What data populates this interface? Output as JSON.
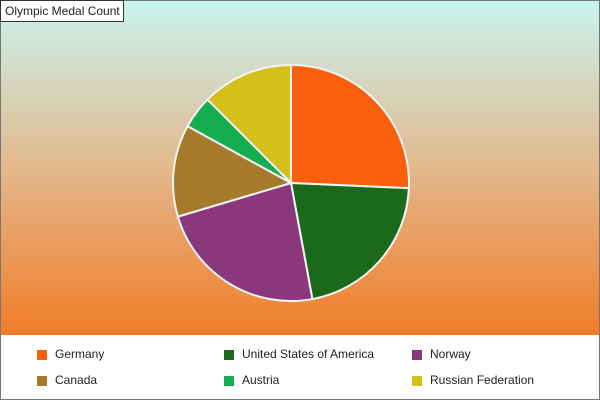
{
  "chart_data": {
    "type": "pie",
    "title": "Olympic Medal Count",
    "categories": [
      "Germany",
      "United States of America",
      "Norway",
      "Canada",
      "Austria",
      "Russian Federation"
    ],
    "values": [
      25.7,
      21.4,
      23.3,
      12.6,
      4.5,
      12.5
    ],
    "colors": [
      "#f8600e",
      "#1b6a1b",
      "#8a377b",
      "#a57a2a",
      "#14ad4f",
      "#d5c01b"
    ],
    "legend": "bottom"
  }
}
